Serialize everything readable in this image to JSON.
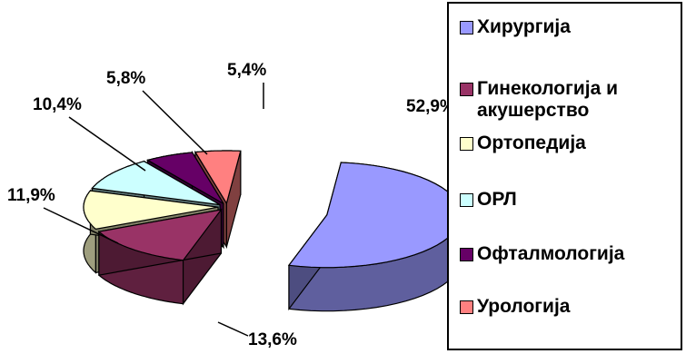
{
  "chart_data": {
    "type": "pie",
    "title": "",
    "categories": [
      "Хирургија",
      "Гинекологија и акушерство",
      "Ортопедија",
      "ОРЛ",
      "Офталмологија",
      "Урологија"
    ],
    "values": [
      52.9,
      13.6,
      11.9,
      10.4,
      5.8,
      5.4
    ],
    "value_labels": [
      "52,9%",
      "13,6%",
      "11,9%",
      "10,4%",
      "5,8%",
      "5,4%"
    ],
    "colors": [
      "#9999FF",
      "#993366",
      "#FFFFCC",
      "#CCFFFF",
      "#660066",
      "#FF8080"
    ],
    "exploded": true,
    "three_d": true,
    "legend_position": "right"
  },
  "legend": {
    "items": [
      {
        "label_lines": [
          "Хирургија"
        ],
        "color": "#9999FF"
      },
      {
        "label_lines": [
          "Гинекологија и",
          "акушерство"
        ],
        "color": "#993366"
      },
      {
        "label_lines": [
          "Ортопедија"
        ],
        "color": "#FFFFCC"
      },
      {
        "label_lines": [
          "ОРЛ"
        ],
        "color": "#CCFFFF"
      },
      {
        "label_lines": [
          "Офталмологија"
        ],
        "color": "#660066"
      },
      {
        "label_lines": [
          "Урологија"
        ],
        "color": "#FF8080"
      }
    ]
  }
}
